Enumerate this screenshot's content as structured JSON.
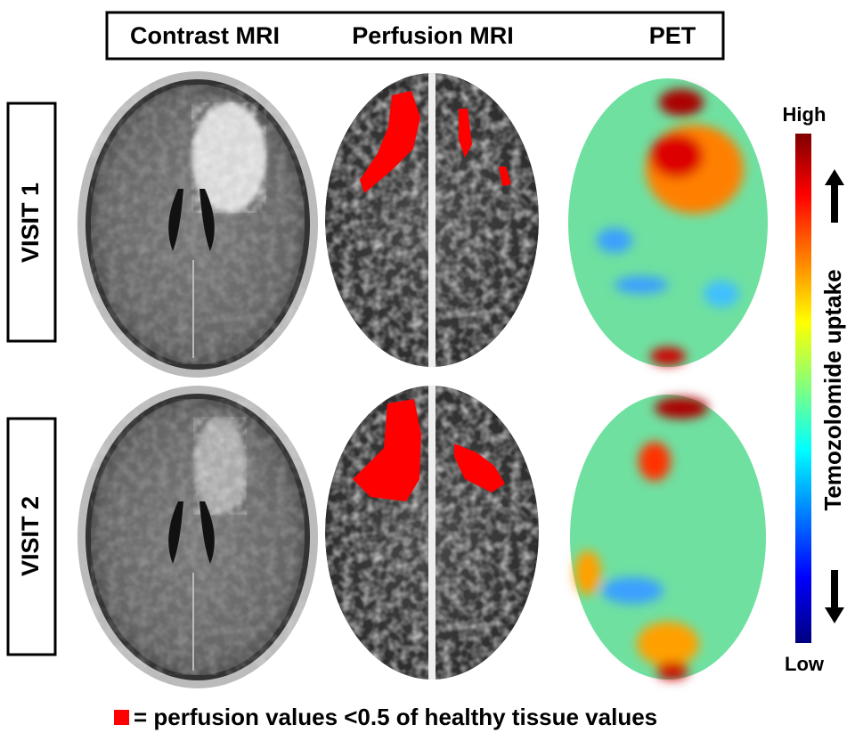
{
  "header": {
    "columns": [
      "Contrast MRI",
      "Perfusion MRI",
      "PET"
    ]
  },
  "rows": [
    {
      "label": "VISIT 1"
    },
    {
      "label": "VISIT 2"
    }
  ],
  "colorbar": {
    "high": "High",
    "low": "Low",
    "label": "Temozolomide uptake"
  },
  "legend": {
    "text": "= perfusion values <0.5 of healthy tissue values"
  }
}
